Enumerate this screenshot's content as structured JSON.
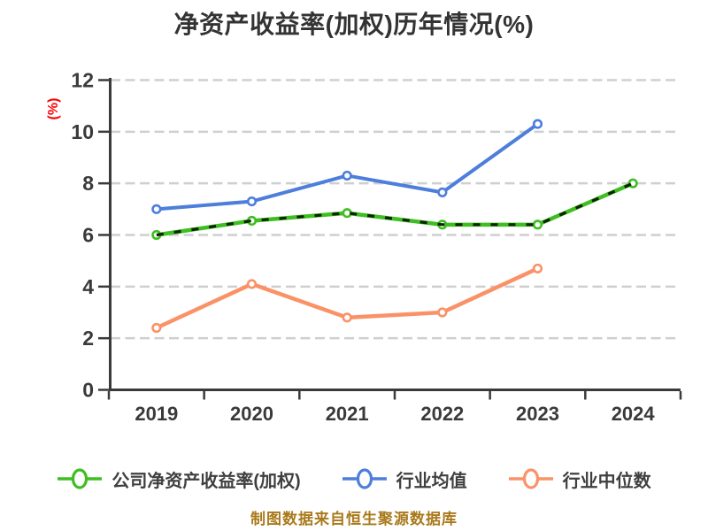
{
  "title": "净资产收益率(加权)历年情况(%)",
  "footer": {
    "text": "制图数据来自恒生聚源数据库",
    "color": "#a9791b"
  },
  "chart_data": {
    "type": "line",
    "title": "净资产收益率(加权)历年情况(%)",
    "xlabel": "",
    "ylabel": "(%)",
    "ylabel_color": "#ff0000",
    "categories": [
      "2019",
      "2020",
      "2021",
      "2022",
      "2023",
      "2024"
    ],
    "series": [
      {
        "name": "公司净资产收益率(加权)",
        "color": "#3ebe21",
        "line_style": "solid-with-dark-dashed-overlay",
        "overlay_dash_color": "#0b2400",
        "values": [
          6.0,
          6.55,
          6.85,
          6.4,
          6.4,
          8.0
        ]
      },
      {
        "name": "行业均值",
        "color": "#4d7edb",
        "line_style": "solid",
        "values": [
          7.0,
          7.3,
          8.3,
          7.65,
          10.3,
          null
        ]
      },
      {
        "name": "行业中位数",
        "color": "#fa9268",
        "line_style": "solid",
        "values": [
          2.4,
          4.1,
          2.8,
          3.0,
          4.7,
          null
        ]
      }
    ],
    "ylim": [
      0,
      12
    ],
    "yticks": [
      0,
      2,
      4,
      6,
      8,
      10,
      12
    ],
    "grid": "horizontal-dashed",
    "grid_color": "#cfcfcf",
    "axis_color": "#3a3a3a",
    "tick_label_color": "#3a3a3a",
    "marker": "circle-white-fill",
    "legend_position": "bottom"
  }
}
